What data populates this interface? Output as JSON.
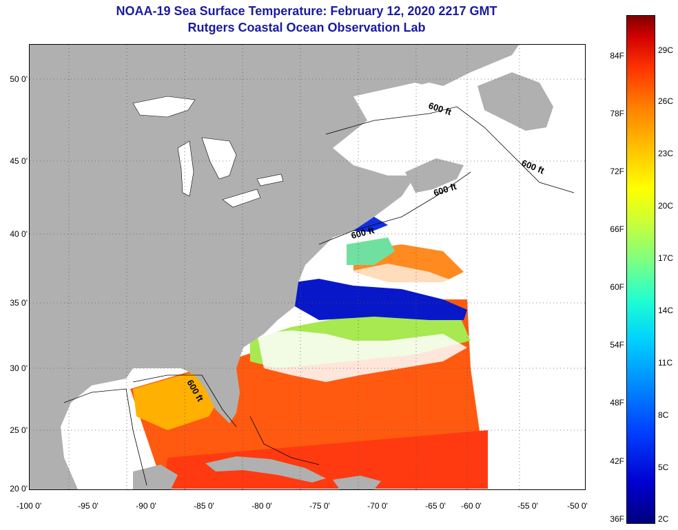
{
  "title": {
    "line1": "NOAA-19 Sea Surface Temperature:  February 12, 2020 2217 GMT",
    "line2": "Rutgers Coastal Ocean Observation Lab"
  },
  "map": {
    "lat_labels": [
      "50 0'",
      "45 0'",
      "40 0'",
      "35 0'",
      "30 0'",
      "25 0'",
      "20 0'"
    ],
    "lon_labels": [
      "-100 0'",
      "-95 0'",
      "-90 0'",
      "-85 0'",
      "-80 0'",
      "-75 0'",
      "-70 0'",
      "-65 0'",
      "-60 0'",
      "-55 0'",
      "-50 0'"
    ],
    "isobath_labels": [
      "600 ft",
      "600 ft",
      "600 ft",
      "600 ft",
      "600 ft"
    ],
    "colors": {
      "land": "#b0b0b0",
      "cloud_or_no_data": "#ffffff",
      "gridline": "#555555"
    }
  },
  "colorbar": {
    "fahrenheit_labels": [
      "84F",
      "78F",
      "72F",
      "66F",
      "60F",
      "54F",
      "48F",
      "42F",
      "36F"
    ],
    "celsius_labels": [
      "29C",
      "26C",
      "23C",
      "20C",
      "17C",
      "14C",
      "11C",
      "8C",
      "5C",
      "2C"
    ]
  }
}
